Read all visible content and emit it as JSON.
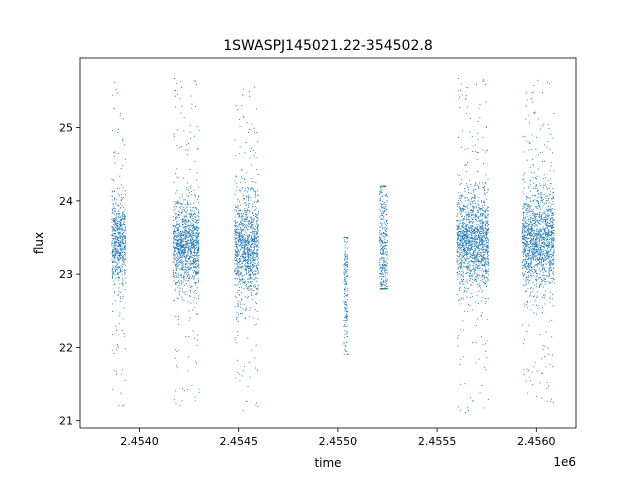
{
  "chart_data": {
    "type": "scatter",
    "title": "1SWASPJ145021.22-354502.8",
    "xlabel": "time",
    "ylabel": "flux",
    "x_offset_label": "1e6",
    "xlim": [
      2453700,
      2456200
    ],
    "ylim": [
      20.9,
      25.95
    ],
    "xticks": [
      2454000,
      2454500,
      2455000,
      2455500,
      2456000
    ],
    "xtick_labels": [
      "2.4540",
      "2.4545",
      "2.4550",
      "2.4555",
      "2.4560"
    ],
    "yticks": [
      21,
      22,
      23,
      24,
      25
    ],
    "ytick_labels": [
      "21",
      "22",
      "23",
      "24",
      "25"
    ],
    "grid": false,
    "marker_color": "#1f77b4",
    "clusters": [
      {
        "x_start": 2453860,
        "x_end": 2453930,
        "y_center": 23.45,
        "y_spread": 0.3,
        "y_min": 21.2,
        "y_max": 25.65
      },
      {
        "x_start": 2454170,
        "x_end": 2454300,
        "y_center": 23.4,
        "y_spread": 0.3,
        "y_min": 21.2,
        "y_max": 25.7
      },
      {
        "x_start": 2454480,
        "x_end": 2454600,
        "y_center": 23.35,
        "y_spread": 0.35,
        "y_min": 21.1,
        "y_max": 25.6
      },
      {
        "x_start": 2455030,
        "x_end": 2455050,
        "y_center": 22.8,
        "y_spread": 0.5,
        "y_min": 21.9,
        "y_max": 23.5
      },
      {
        "x_start": 2455210,
        "x_end": 2455250,
        "y_center": 23.4,
        "y_spread": 0.5,
        "y_min": 22.8,
        "y_max": 24.2
      },
      {
        "x_start": 2455600,
        "x_end": 2455760,
        "y_center": 23.45,
        "y_spread": 0.32,
        "y_min": 21.1,
        "y_max": 25.7
      },
      {
        "x_start": 2455930,
        "x_end": 2456090,
        "y_center": 23.45,
        "y_spread": 0.32,
        "y_min": 21.15,
        "y_max": 25.65
      }
    ]
  }
}
